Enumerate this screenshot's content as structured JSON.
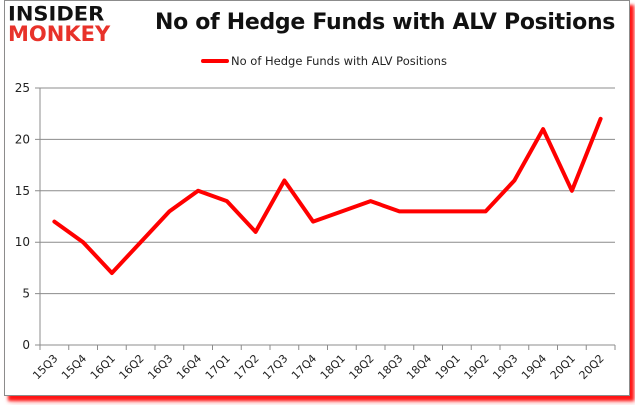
{
  "logo": {
    "line1": "INSIDER",
    "line2": "MONKEY"
  },
  "header": {
    "title": "No of Hedge Funds with ALV Positions"
  },
  "legend": {
    "label": "No of Hedge Funds with ALV Positions",
    "color": "#ff0000"
  },
  "chart_data": {
    "type": "line",
    "title": "No of Hedge Funds with ALV Positions",
    "xlabel": "",
    "ylabel": "",
    "ylim": [
      0,
      25
    ],
    "yticks": [
      0,
      5,
      10,
      15,
      20,
      25
    ],
    "grid": true,
    "legend_position": "top",
    "categories": [
      "15Q3",
      "15Q4",
      "16Q1",
      "16Q2",
      "16Q3",
      "16Q4",
      "17Q1",
      "17Q2",
      "17Q3",
      "17Q4",
      "18Q1",
      "18Q2",
      "18Q3",
      "18Q4",
      "19Q1",
      "19Q2",
      "19Q3",
      "19Q4",
      "20Q1",
      "20Q2"
    ],
    "series": [
      {
        "name": "No of Hedge Funds with ALV Positions",
        "color": "#ff0000",
        "values": [
          12,
          10,
          7,
          10,
          13,
          15,
          14,
          11,
          16,
          12,
          13,
          14,
          13,
          13,
          13,
          13,
          16,
          21,
          15,
          22
        ]
      }
    ]
  }
}
